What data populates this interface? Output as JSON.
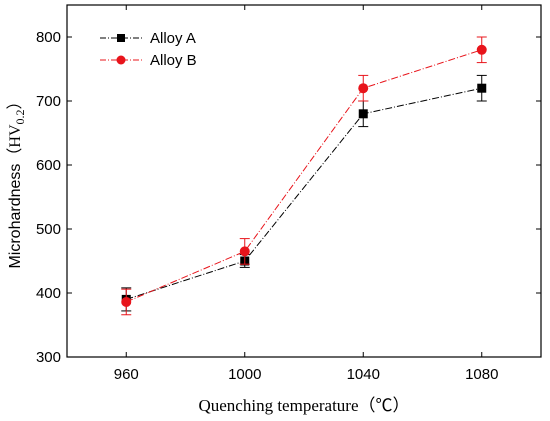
{
  "chart_data": {
    "type": "line",
    "xlabel": "Quenching temperature（℃）",
    "ylabel_main": "Microhardness",
    "ylabel_unit": "（HV",
    "ylabel_sub": "0.2",
    "ylabel_close": "）",
    "x": [
      960,
      1000,
      1040,
      1080
    ],
    "xlim": [
      940,
      1100
    ],
    "ylim": [
      300,
      850
    ],
    "xticks": [
      "960",
      "1000",
      "1040",
      "1080"
    ],
    "yticks": [
      "300",
      "400",
      "500",
      "600",
      "700",
      "800"
    ],
    "legend_position": "top-left",
    "series": [
      {
        "name": "Alloy A",
        "marker": "square",
        "color": "#000000",
        "values": [
          390,
          450,
          680,
          720
        ],
        "errors": [
          18,
          10,
          20,
          20
        ]
      },
      {
        "name": "Alloy B",
        "marker": "circle",
        "color": "#e8141b",
        "values": [
          386,
          465,
          720,
          780
        ],
        "errors": [
          20,
          20,
          20,
          20
        ]
      }
    ]
  }
}
